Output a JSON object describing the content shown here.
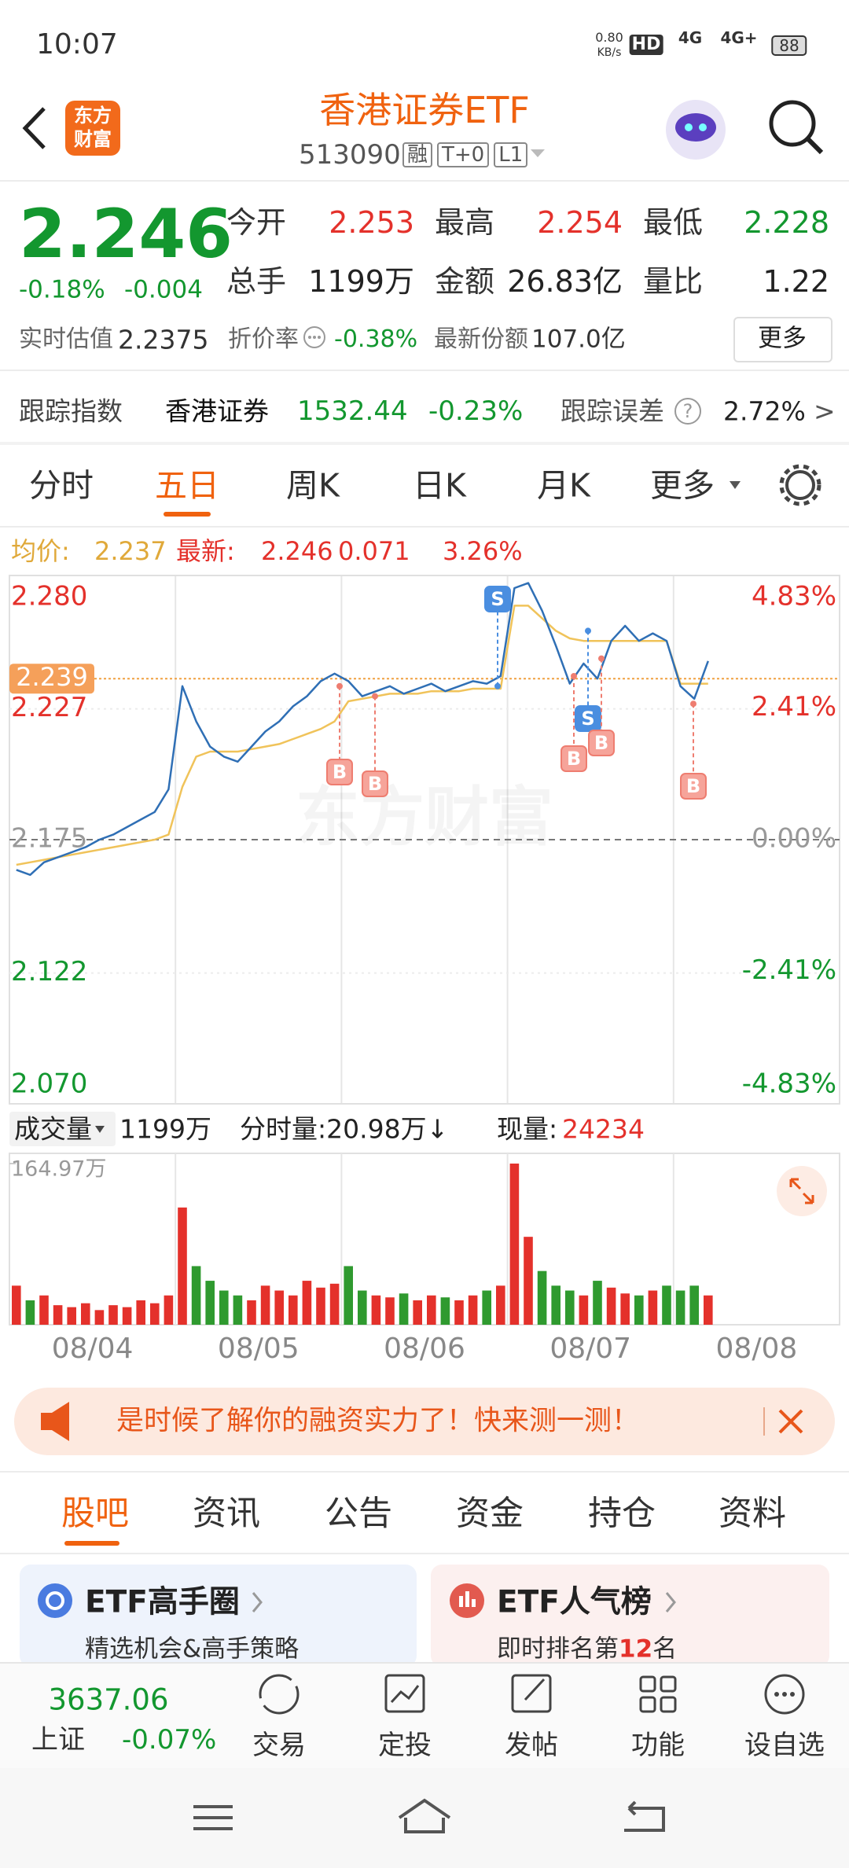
{
  "status_bar": {
    "time": "10:07",
    "net_speed": "0.80",
    "net_unit": "KB/s",
    "network": [
      "HD",
      "4G",
      "4G+"
    ],
    "battery": "88"
  },
  "header": {
    "logo": [
      "东方",
      "财富"
    ],
    "title": "香港证券ETF",
    "code": "513090",
    "tags": [
      "融",
      "T+0",
      "L1"
    ]
  },
  "quote": {
    "price": "2.246",
    "change_pct": "-0.18%",
    "change": "-0.004",
    "stats": [
      {
        "label": "今开",
        "value": "2.253"
      },
      {
        "label": "最高",
        "value": "2.254"
      },
      {
        "label": "最低",
        "value": "2.228"
      },
      {
        "label": "总手",
        "value": "1199万"
      },
      {
        "label": "金额",
        "value": "26.83亿"
      },
      {
        "label": "量比",
        "value": "1.22"
      }
    ],
    "estimate_label": "实时估值",
    "estimate": "2.2375",
    "discount_label": "折价率",
    "discount": "-0.38%",
    "shares_label": "最新份额",
    "shares": "107.0亿",
    "more": "更多"
  },
  "tracking": {
    "label": "跟踪指数",
    "index_name": "香港证券",
    "index_value": "1532.44",
    "index_change": "-0.23%",
    "error_label": "跟踪误差",
    "help": "?",
    "error": "2.72%",
    "arrow": ">"
  },
  "period_tabs": [
    "分时",
    "五日",
    "周K",
    "日K",
    "月K",
    "更多"
  ],
  "chart_data": [
    {
      "type": "line",
      "summary": {
        "avg_label": "均价:",
        "avg": "2.237",
        "last_label": "最新:",
        "last": "2.246",
        "change": "0.071",
        "change_pct": "3.26%"
      },
      "watermark": "东方财富",
      "ylim": [
        2.07,
        2.28
      ],
      "yticks": [
        {
          "value": 2.28,
          "label": "2.280"
        },
        2.227,
        2.175,
        2.122,
        {
          "value": 2.07,
          "label": "2.070"
        }
      ],
      "y2lim": [
        -4.83,
        4.83
      ],
      "y2ticks": [
        {
          "value": 4.83,
          "label": "4.83%"
        },
        {
          "value": 2.41,
          "label": "2.41%"
        },
        {
          "value": 0,
          "label": "0.00%"
        },
        {
          "value": -2.41,
          "label": "-2.41%"
        },
        {
          "value": -4.83,
          "label": "-4.83%"
        }
      ],
      "ref_value": 2.239,
      "series": [
        {
          "color": "#2f6fb5",
          "values": [
            2.163,
            2.161,
            2.166,
            2.168,
            2.17,
            2.172,
            2.175,
            2.177,
            2.18,
            2.183,
            2.186,
            2.195,
            2.236,
            2.222,
            2.212,
            2.208,
            2.206,
            2.212,
            2.218,
            2.222,
            2.228,
            2.232,
            2.238,
            2.241,
            2.238,
            2.232,
            2.234,
            2.236,
            2.233,
            2.235,
            2.237,
            2.234,
            2.236,
            2.238,
            2.237,
            2.24,
            2.275,
            2.277,
            2.266,
            2.252,
            2.237,
            2.245,
            2.239,
            2.254,
            2.26,
            2.254,
            2.257,
            2.254,
            2.236,
            2.231,
            2.246
          ]
        },
        {
          "color": "#f0c35a",
          "values": [
            2.165,
            2.166,
            2.167,
            2.168,
            2.169,
            2.17,
            2.171,
            2.172,
            2.173,
            2.174,
            2.175,
            2.177,
            2.196,
            2.208,
            2.21,
            2.21,
            2.21,
            2.211,
            2.212,
            2.213,
            2.215,
            2.217,
            2.219,
            2.222,
            2.23,
            2.231,
            2.232,
            2.233,
            2.233,
            2.233,
            2.234,
            2.234,
            2.234,
            2.235,
            2.235,
            2.235,
            2.268,
            2.268,
            2.263,
            2.258,
            2.255,
            2.254,
            2.254,
            2.254,
            2.254,
            2.254,
            2.254,
            2.254,
            2.237,
            2.237,
            2.237
          ]
        }
      ],
      "trades": [
        {
          "side": "B",
          "price": 2.236
        },
        {
          "side": "B",
          "price": 2.232
        },
        {
          "side": "S",
          "price": 2.236
        },
        {
          "side": "B",
          "price": 2.24
        },
        {
          "side": "S",
          "price": 2.258
        },
        {
          "side": "B",
          "price": 2.247
        },
        {
          "side": "B",
          "price": 2.229
        }
      ]
    },
    {
      "type": "bar",
      "label": "成交量",
      "total": "1199万",
      "tick_volume": "分时量:20.98万↓",
      "current_label": "现量:",
      "current": "24234",
      "ylim": [
        0,
        164.97
      ],
      "yticks": [
        {
          "value": 164.97,
          "label": "164.97万"
        }
      ],
      "values": [
        40,
        25,
        30,
        20,
        18,
        22,
        15,
        20,
        18,
        25,
        22,
        30,
        120,
        60,
        45,
        35,
        30,
        25,
        40,
        35,
        30,
        45,
        38,
        42,
        60,
        35,
        30,
        28,
        32,
        25,
        30,
        28,
        25,
        30,
        35,
        40,
        164.97,
        90,
        55,
        40,
        35,
        30,
        45,
        38,
        32,
        30,
        35,
        40,
        35,
        40,
        30
      ],
      "x_labels": [
        "08/04",
        "08/05",
        "08/06",
        "08/07",
        "08/08"
      ]
    }
  ],
  "banner": {
    "text": "是时候了解你的融资实力了！快来测一测！"
  },
  "news_tabs": [
    "股吧",
    "资讯",
    "公告",
    "资金",
    "持仓",
    "资料"
  ],
  "cards": [
    {
      "title": "ETF高手圈",
      "subtitle": [
        "精选机会&高手策略"
      ]
    },
    {
      "title": "ETF人气榜",
      "subtitle": [
        "即时排名第",
        "12",
        "名"
      ]
    }
  ],
  "index_quote": {
    "value": "3637.06",
    "name": "上证",
    "change": "-0.07%"
  },
  "toolbar": [
    "交易",
    "定投",
    "发帖",
    "功能",
    "设自选"
  ]
}
